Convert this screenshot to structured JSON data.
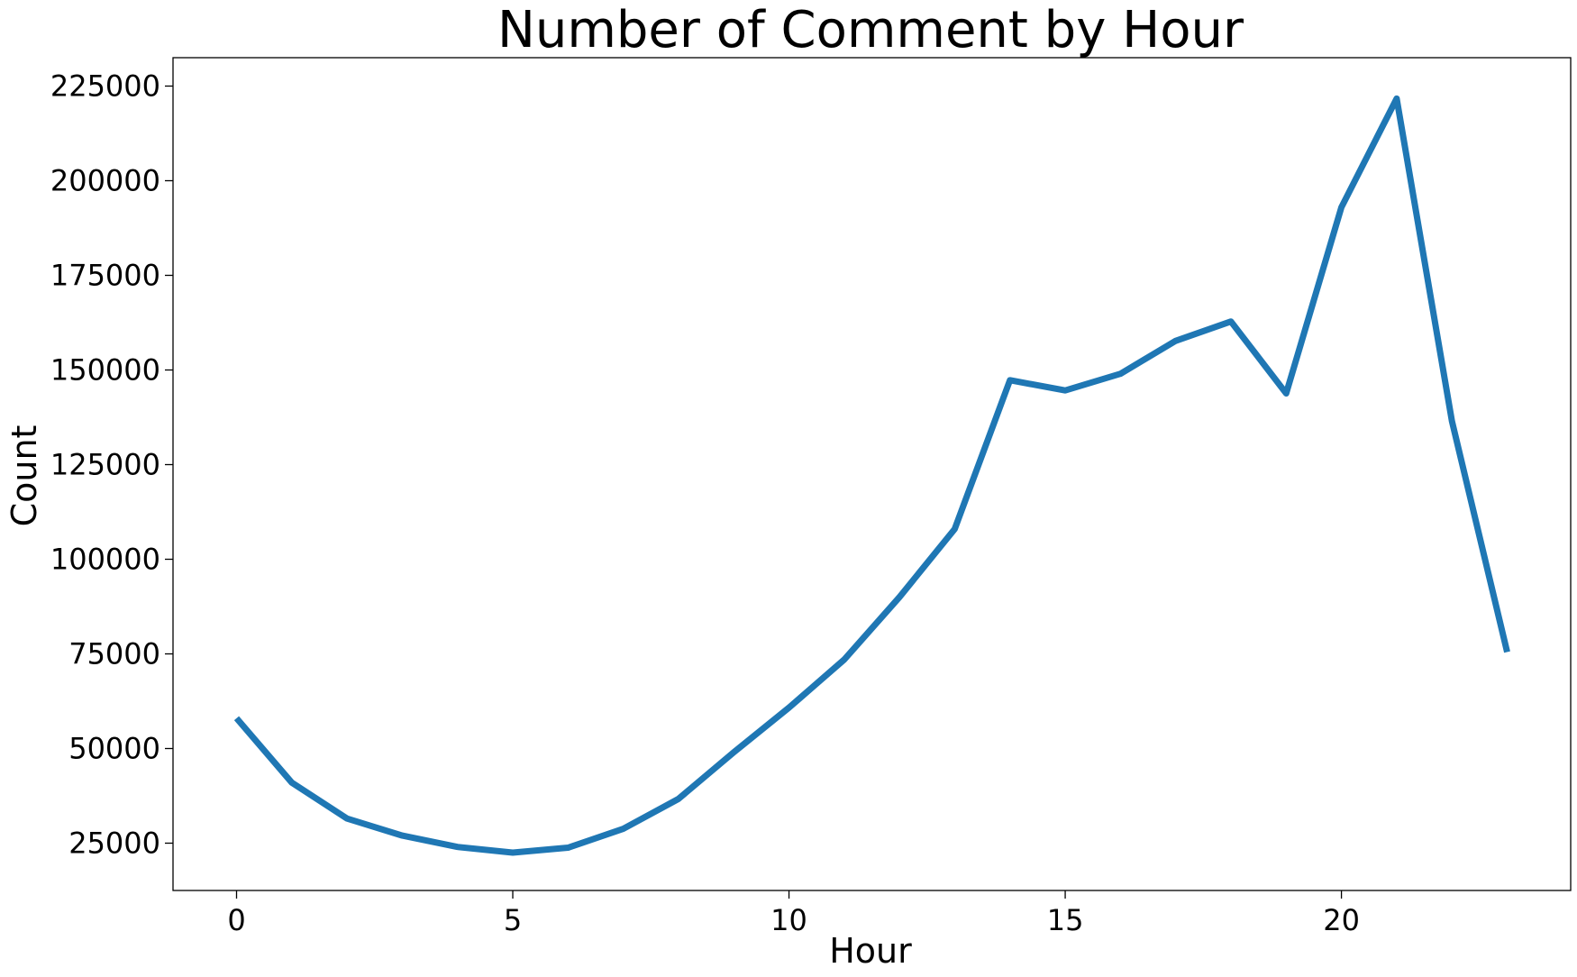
{
  "chart_data": {
    "type": "line",
    "title": "Number of Comment by Hour",
    "xlabel": "Hour",
    "ylabel": "Count",
    "xlim": [
      -1.15,
      24.15
    ],
    "ylim": [
      12500,
      232500
    ],
    "xticks": [
      0,
      5,
      10,
      15,
      20
    ],
    "yticks": [
      25000,
      50000,
      75000,
      100000,
      125000,
      150000,
      175000,
      200000,
      225000
    ],
    "grid": false,
    "legend": "none",
    "series": [
      {
        "color": "#1f77b4",
        "x": [
          0,
          1,
          2,
          3,
          4,
          5,
          6,
          7,
          8,
          9,
          10,
          11,
          12,
          13,
          14,
          15,
          16,
          17,
          18,
          19,
          20,
          21,
          22,
          23
        ],
        "y": [
          58000,
          41000,
          31500,
          27000,
          24000,
          22500,
          23800,
          28800,
          36700,
          49000,
          60800,
          73500,
          90000,
          108000,
          147300,
          144600,
          149000,
          157700,
          162800,
          143800,
          193000,
          221700,
          136500,
          75500
        ]
      }
    ]
  }
}
